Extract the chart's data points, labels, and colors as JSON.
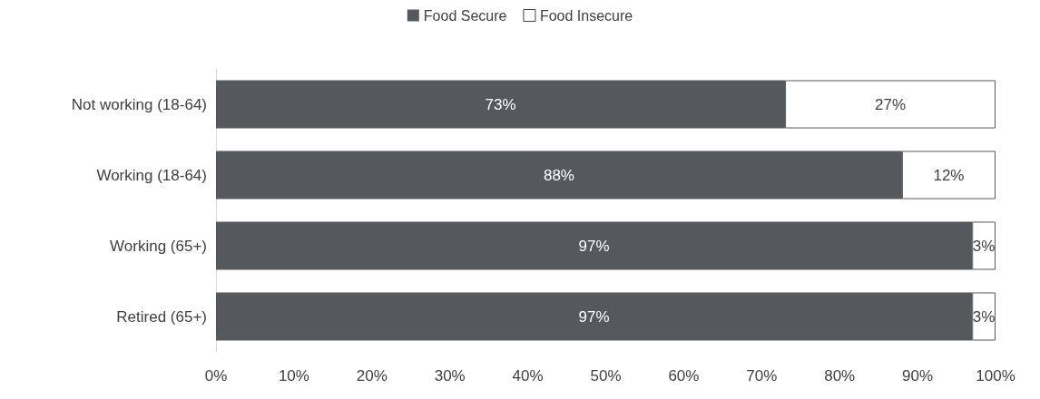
{
  "chart_data": {
    "type": "bar",
    "orientation": "horizontal",
    "stacked": true,
    "categories": [
      "Not working (18-64)",
      "Working (18-64)",
      "Working (65+)",
      "Retired (65+)"
    ],
    "series": [
      {
        "name": "Food Secure",
        "color": "#55585d",
        "values": [
          73,
          88,
          97,
          97
        ],
        "value_labels": [
          "73%",
          "88%",
          "97%",
          "97%"
        ]
      },
      {
        "name": "Food Insecure",
        "color": "#ffffff",
        "values": [
          27,
          12,
          3,
          3
        ],
        "value_labels": [
          "27%",
          "12%",
          "3%",
          "3%"
        ]
      }
    ],
    "xlim": [
      0,
      100
    ],
    "xticks": [
      {
        "value": 0,
        "label": "0%"
      },
      {
        "value": 10,
        "label": "10%"
      },
      {
        "value": 20,
        "label": "20%"
      },
      {
        "value": 30,
        "label": "30%"
      },
      {
        "value": 40,
        "label": "40%"
      },
      {
        "value": 50,
        "label": "50%"
      },
      {
        "value": 60,
        "label": "60%"
      },
      {
        "value": 70,
        "label": "70%"
      },
      {
        "value": 80,
        "label": "80%"
      },
      {
        "value": 90,
        "label": "90%"
      },
      {
        "value": 100,
        "label": "100%"
      }
    ],
    "grid": false,
    "legend": "top"
  }
}
